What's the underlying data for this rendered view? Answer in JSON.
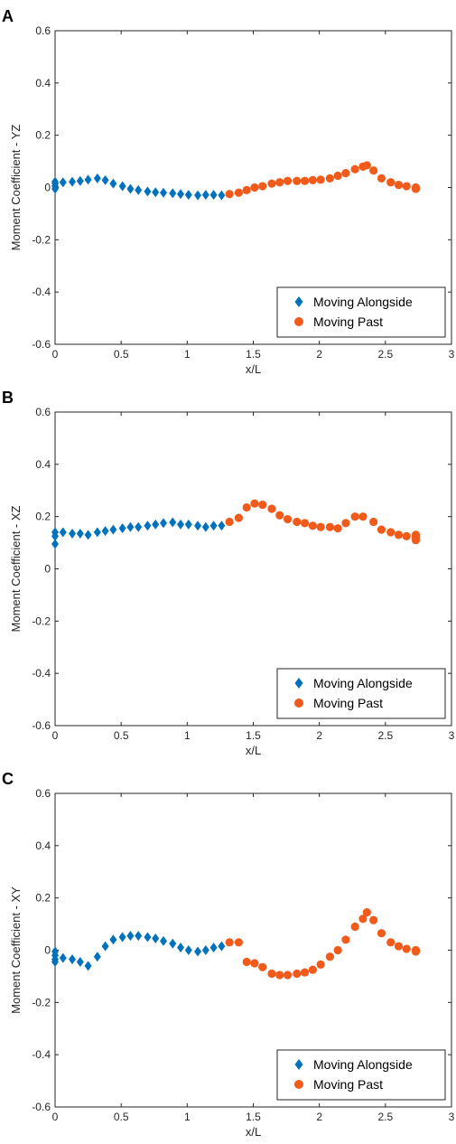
{
  "colors": {
    "alongside": "#0072BD",
    "past": "#F05A1A",
    "axis": "#262626"
  },
  "chart_data": [
    {
      "type": "scatter",
      "panel_label": "A",
      "xlabel": "x/L",
      "ylabel": "Moment Coefficient - YZ",
      "xlim": [
        0,
        3
      ],
      "ylim": [
        -0.6,
        0.6
      ],
      "xticks": [
        "0",
        "0.5",
        "1",
        "1.5",
        "2",
        "2.5",
        "3"
      ],
      "yticks": [
        "-0.6",
        "-0.4",
        "-0.2",
        "0",
        "0.2",
        "0.4",
        "0.6"
      ],
      "legend_position": "bottom-right",
      "series": [
        {
          "name": "Moving Alongside",
          "marker": "diamond",
          "x": [
            0,
            0,
            0,
            0,
            0.06,
            0.13,
            0.19,
            0.25,
            0.32,
            0.38,
            0.44,
            0.51,
            0.57,
            0.63,
            0.7,
            0.76,
            0.82,
            0.89,
            0.95,
            1.01,
            1.08,
            1.14,
            1.2,
            1.26
          ],
          "y": [
            -0.005,
            0.005,
            0.015,
            0.022,
            0.02,
            0.022,
            0.025,
            0.03,
            0.035,
            0.028,
            0.015,
            0.005,
            -0.005,
            -0.01,
            -0.015,
            -0.018,
            -0.02,
            -0.022,
            -0.025,
            -0.028,
            -0.03,
            -0.028,
            -0.028,
            -0.03
          ]
        },
        {
          "name": "Moving Past",
          "marker": "circle",
          "x": [
            1.32,
            1.39,
            1.45,
            1.51,
            1.57,
            1.64,
            1.7,
            1.76,
            1.83,
            1.89,
            1.95,
            2.01,
            2.08,
            2.14,
            2.2,
            2.27,
            2.33,
            2.36,
            2.41,
            2.47,
            2.54,
            2.6,
            2.66,
            2.73,
            2.73
          ],
          "y": [
            -0.025,
            -0.02,
            -0.01,
            0.0,
            0.005,
            0.015,
            0.02,
            0.025,
            0.025,
            0.025,
            0.028,
            0.03,
            0.035,
            0.045,
            0.055,
            0.07,
            0.08,
            0.085,
            0.065,
            0.035,
            0.02,
            0.01,
            0.005,
            0.0,
            -0.005
          ]
        }
      ]
    },
    {
      "type": "scatter",
      "panel_label": "B",
      "xlabel": "x/L",
      "ylabel": "Moment Coefficient - XZ",
      "xlim": [
        0,
        3
      ],
      "ylim": [
        -0.6,
        0.6
      ],
      "xticks": [
        "0",
        "0.5",
        "1",
        "1.5",
        "2",
        "2.5",
        "3"
      ],
      "yticks": [
        "-0.6",
        "-0.4",
        "-0.2",
        "0",
        "0.2",
        "0.4",
        "0.6"
      ],
      "legend_position": "bottom-right",
      "series": [
        {
          "name": "Moving Alongside",
          "marker": "diamond",
          "x": [
            0,
            0,
            0,
            0.06,
            0.13,
            0.19,
            0.25,
            0.32,
            0.38,
            0.44,
            0.51,
            0.57,
            0.63,
            0.7,
            0.76,
            0.82,
            0.89,
            0.95,
            1.01,
            1.08,
            1.14,
            1.2,
            1.26
          ],
          "y": [
            0.095,
            0.125,
            0.14,
            0.14,
            0.135,
            0.135,
            0.13,
            0.14,
            0.145,
            0.15,
            0.155,
            0.16,
            0.16,
            0.165,
            0.17,
            0.175,
            0.178,
            0.17,
            0.17,
            0.165,
            0.16,
            0.165,
            0.165
          ]
        },
        {
          "name": "Moving Past",
          "marker": "circle",
          "x": [
            1.32,
            1.39,
            1.45,
            1.51,
            1.57,
            1.64,
            1.7,
            1.76,
            1.83,
            1.89,
            1.95,
            2.01,
            2.08,
            2.14,
            2.2,
            2.27,
            2.33,
            2.41,
            2.47,
            2.54,
            2.6,
            2.66,
            2.73,
            2.73,
            2.73
          ],
          "y": [
            0.18,
            0.195,
            0.235,
            0.25,
            0.245,
            0.23,
            0.205,
            0.19,
            0.18,
            0.175,
            0.165,
            0.16,
            0.16,
            0.155,
            0.175,
            0.2,
            0.2,
            0.18,
            0.15,
            0.14,
            0.13,
            0.125,
            0.12,
            0.11,
            0.13
          ]
        }
      ]
    },
    {
      "type": "scatter",
      "panel_label": "C",
      "xlabel": "x/L",
      "ylabel": "Moment Coefficient - XY",
      "xlim": [
        0,
        3
      ],
      "ylim": [
        -0.6,
        0.6
      ],
      "xticks": [
        "0",
        "0.5",
        "1",
        "1.5",
        "2",
        "2.5",
        "3"
      ],
      "yticks": [
        "-0.6",
        "-0.4",
        "-0.2",
        "0",
        "0.2",
        "0.4",
        "0.6"
      ],
      "legend_position": "bottom-right",
      "series": [
        {
          "name": "Moving Alongside",
          "marker": "diamond",
          "x": [
            0,
            0,
            0,
            0,
            0.06,
            0.13,
            0.19,
            0.25,
            0.32,
            0.38,
            0.44,
            0.51,
            0.57,
            0.63,
            0.7,
            0.76,
            0.82,
            0.89,
            0.95,
            1.01,
            1.08,
            1.14,
            1.2,
            1.26
          ],
          "y": [
            -0.045,
            -0.035,
            -0.02,
            -0.005,
            -0.03,
            -0.035,
            -0.045,
            -0.06,
            -0.025,
            0.015,
            0.04,
            0.05,
            0.055,
            0.055,
            0.05,
            0.045,
            0.035,
            0.025,
            0.01,
            0.0,
            -0.005,
            0.0,
            0.01,
            0.015
          ]
        },
        {
          "name": "Moving Past",
          "marker": "circle",
          "x": [
            1.32,
            1.39,
            1.45,
            1.51,
            1.57,
            1.64,
            1.7,
            1.76,
            1.83,
            1.89,
            1.95,
            2.01,
            2.08,
            2.14,
            2.2,
            2.27,
            2.33,
            2.36,
            2.41,
            2.47,
            2.54,
            2.6,
            2.66,
            2.73,
            2.73
          ],
          "y": [
            0.03,
            0.03,
            -0.045,
            -0.05,
            -0.065,
            -0.09,
            -0.095,
            -0.095,
            -0.09,
            -0.085,
            -0.075,
            -0.055,
            -0.025,
            0.0,
            0.04,
            0.09,
            0.12,
            0.145,
            0.115,
            0.065,
            0.03,
            0.015,
            0.005,
            0.0,
            -0.005
          ]
        }
      ]
    }
  ]
}
